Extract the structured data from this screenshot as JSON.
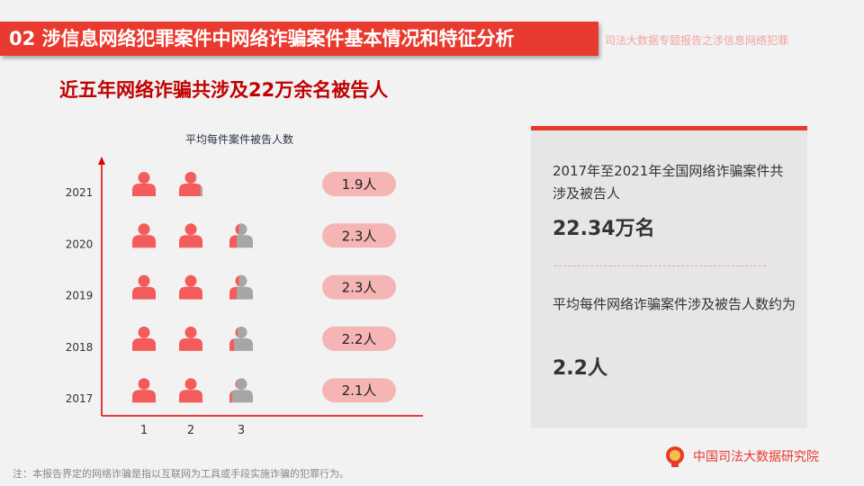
{
  "header": {
    "title": "02  涉信息网络犯罪案件中网络诈骗案件基本情况和特征分析",
    "subtitle": "司法大数据专题报告之涉信息网络犯罪"
  },
  "headline": "近五年网络诈骗共涉及22万余名被告人",
  "chart_data": {
    "type": "pictogram",
    "title": "平均每件案件被告人数",
    "categories": [
      "2021",
      "2020",
      "2019",
      "2018",
      "2017"
    ],
    "values": [
      1.9,
      2.3,
      2.3,
      2.2,
      2.1
    ],
    "value_labels": [
      "1.9人",
      "2.3人",
      "2.3人",
      "2.2人",
      "2.1人"
    ],
    "x_ticks": [
      "1",
      "2",
      "3"
    ],
    "colors": {
      "filled": "#f45b5b",
      "empty": "#a6a6a6",
      "axis": "#e00000",
      "pill": "#f5b5b5"
    }
  },
  "panel": {
    "text1": "2017年至2021年全国网络诈骗案件共涉及被告人",
    "value1": "22.34万名",
    "text2": "平均每件网络诈骗案件涉及被告人数约为",
    "value2": "2.2人"
  },
  "footer": {
    "org": "中国司法大数据研究院",
    "note": "注：本报告界定的网络诈骗是指以互联网为工具或手段实施诈骗的犯罪行为。"
  }
}
